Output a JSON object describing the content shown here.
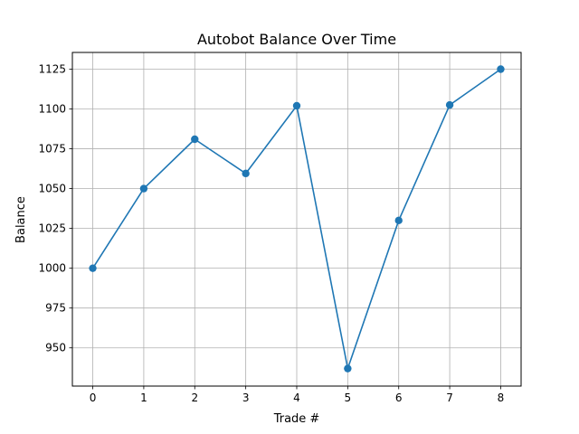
{
  "chart_data": {
    "type": "line",
    "title": "Autobot Balance Over Time",
    "xlabel": "Trade #",
    "ylabel": "Balance",
    "x": [
      0,
      1,
      2,
      3,
      4,
      5,
      6,
      7,
      8
    ],
    "series": [
      {
        "values": [
          1000,
          1050,
          1081,
          1059.5,
          1102,
          937,
          1030,
          1102.5,
          1125
        ],
        "color": "#1f77b4",
        "marker": "circle"
      }
    ],
    "xlim": [
      -0.4,
      8.4
    ],
    "ylim": [
      926,
      1135.5
    ],
    "xticks": [
      0,
      1,
      2,
      3,
      4,
      5,
      6,
      7,
      8
    ],
    "yticks": [
      950,
      975,
      1000,
      1025,
      1050,
      1075,
      1100,
      1125
    ],
    "grid": true
  }
}
